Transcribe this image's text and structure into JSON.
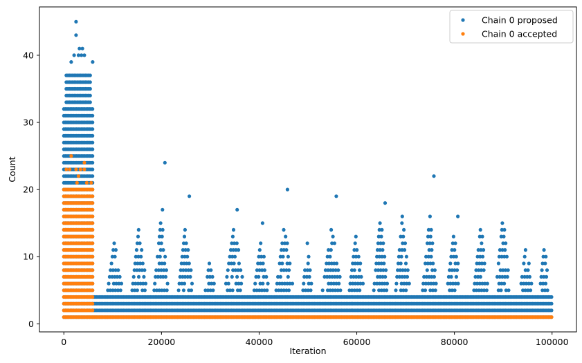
{
  "chart_data": {
    "type": "scatter",
    "title": "",
    "xlabel": "Iteration",
    "ylabel": "Count",
    "xlim": [
      -5000,
      105000
    ],
    "ylim": [
      -1.2,
      47.2
    ],
    "xticks": [
      0,
      20000,
      40000,
      60000,
      80000,
      100000
    ],
    "yticks": [
      0,
      10,
      20,
      30,
      40
    ],
    "grid": false,
    "legend_position": "top-right",
    "series": [
      {
        "name": "Chain 0 proposed",
        "color": "#1f77b4",
        "marker": "circle",
        "dense_bands": [
          {
            "x": [
              0,
              6000
            ],
            "y": [
              1,
              25
            ]
          },
          {
            "x": [
              0,
              6000
            ],
            "y": [
              26,
              32
            ]
          },
          {
            "x": [
              500,
              5500
            ],
            "y": [
              33,
              37
            ]
          },
          {
            "x": [
              6000,
              100000
            ],
            "y": [
              1,
              4
            ]
          }
        ],
        "clusters": [
          {
            "x": [
              9000,
              12000
            ],
            "ymax": 12
          },
          {
            "x": [
              14000,
              17000
            ],
            "ymax": 14
          },
          {
            "x": [
              18500,
              21500
            ],
            "ymax": 15
          },
          {
            "x": [
              23500,
              26500
            ],
            "ymax": 14
          },
          {
            "x": [
              29000,
              31000
            ],
            "ymax": 9
          },
          {
            "x": [
              33000,
              37000
            ],
            "ymax": 14
          },
          {
            "x": [
              39000,
              42000
            ],
            "ymax": 12
          },
          {
            "x": [
              43500,
              47000
            ],
            "ymax": 14
          },
          {
            "x": [
              49000,
              51000
            ],
            "ymax": 12
          },
          {
            "x": [
              53000,
              57000
            ],
            "ymax": 14
          },
          {
            "x": [
              58500,
              61500
            ],
            "ymax": 13
          },
          {
            "x": [
              63500,
              66500
            ],
            "ymax": 16
          },
          {
            "x": [
              68000,
              71000
            ],
            "ymax": 16
          },
          {
            "x": [
              73500,
              76500
            ],
            "ymax": 15
          },
          {
            "x": [
              78500,
              81500
            ],
            "ymax": 13
          },
          {
            "x": [
              84000,
              87000
            ],
            "ymax": 14
          },
          {
            "x": [
              88500,
              91500
            ],
            "ymax": 15
          },
          {
            "x": [
              93500,
              96000
            ],
            "ymax": 11
          },
          {
            "x": [
              97500,
              99500
            ],
            "ymax": 11
          }
        ],
        "outliers": [
          {
            "x": 2500,
            "y": 45
          },
          {
            "x": 2500,
            "y": 43
          },
          {
            "x": 3200,
            "y": 41
          },
          {
            "x": 3800,
            "y": 41
          },
          {
            "x": 2100,
            "y": 40
          },
          {
            "x": 3000,
            "y": 40
          },
          {
            "x": 3600,
            "y": 40
          },
          {
            "x": 4200,
            "y": 40
          },
          {
            "x": 1500,
            "y": 39
          },
          {
            "x": 5900,
            "y": 39
          },
          {
            "x": 20700,
            "y": 24
          },
          {
            "x": 25700,
            "y": 19
          },
          {
            "x": 45800,
            "y": 20
          },
          {
            "x": 55800,
            "y": 19
          },
          {
            "x": 75800,
            "y": 22
          },
          {
            "x": 20200,
            "y": 17
          },
          {
            "x": 35500,
            "y": 17
          },
          {
            "x": 65800,
            "y": 18
          },
          {
            "x": 40700,
            "y": 15
          },
          {
            "x": 80700,
            "y": 16
          },
          {
            "x": 75000,
            "y": 16
          }
        ]
      },
      {
        "name": "Chain 0 accepted",
        "color": "#ff7f0e",
        "marker": "circle",
        "dense_bands": [
          {
            "x": [
              0,
              6000
            ],
            "y": [
              1,
              17
            ]
          },
          {
            "x": [
              0,
              6000
            ],
            "y": [
              18,
              20
            ]
          },
          {
            "x": [
              6000,
              100000
            ],
            "y": [
              1,
              1
            ]
          }
        ],
        "outliers": [
          {
            "x": 1500,
            "y": 25
          },
          {
            "x": 500,
            "y": 23
          },
          {
            "x": 1200,
            "y": 23
          },
          {
            "x": 2500,
            "y": 23
          },
          {
            "x": 3400,
            "y": 23
          },
          {
            "x": 4200,
            "y": 23
          },
          {
            "x": 4200,
            "y": 24
          },
          {
            "x": 3000,
            "y": 22
          },
          {
            "x": 2700,
            "y": 21
          },
          {
            "x": 4700,
            "y": 21
          },
          {
            "x": 5600,
            "y": 21
          }
        ]
      }
    ]
  }
}
